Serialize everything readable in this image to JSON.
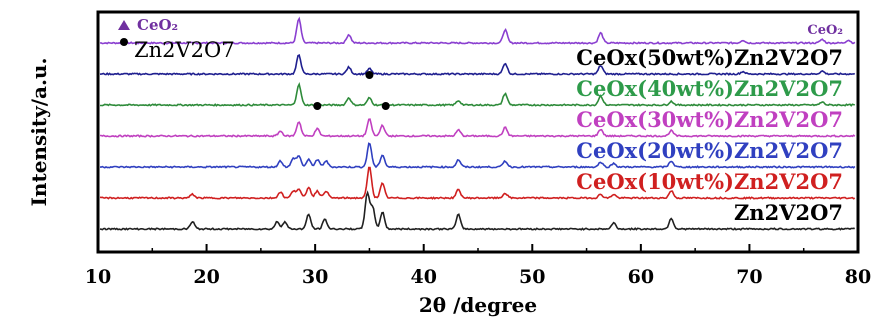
{
  "chart_data": {
    "type": "line",
    "xlabel": "2θ /degree",
    "ylabel": "Intensity/a.u.",
    "xlim": [
      10,
      80
    ],
    "xticks": [
      10,
      20,
      30,
      40,
      50,
      60,
      70,
      80
    ],
    "legend": [
      {
        "marker": "triangle",
        "label": "CeO₂",
        "color": "#7030a0"
      },
      {
        "marker": "dot",
        "label": "Zn2V2O7",
        "color": "#000000"
      }
    ],
    "series": [
      {
        "name": "CeO₂",
        "color": "#8a3fd0",
        "offset": 7,
        "label_color": "#7030a0",
        "peaks": [
          [
            28.5,
            1.0
          ],
          [
            33.1,
            0.35
          ],
          [
            47.5,
            0.55
          ],
          [
            56.3,
            0.42
          ],
          [
            69.4,
            0.12
          ],
          [
            76.7,
            0.15
          ],
          [
            79.1,
            0.12
          ]
        ]
      },
      {
        "name": "CeOx(50wt%)Zn2V2O7",
        "color": "#1f1f8f",
        "offset": 6,
        "label_color": "#000000",
        "peaks": [
          [
            28.5,
            0.8
          ],
          [
            33.1,
            0.28
          ],
          [
            35.0,
            0.22
          ],
          [
            47.5,
            0.45
          ],
          [
            56.3,
            0.35
          ],
          [
            69.4,
            0.1
          ],
          [
            76.7,
            0.12
          ]
        ]
      },
      {
        "name": "CeOx(40wt%)Zn2V2O7",
        "color": "#2e8b3a",
        "offset": 5,
        "label_color": "#2e9b4a",
        "peaks": [
          [
            28.5,
            0.85
          ],
          [
            33.1,
            0.3
          ],
          [
            35.0,
            0.3
          ],
          [
            43.2,
            0.18
          ],
          [
            47.5,
            0.48
          ],
          [
            56.3,
            0.38
          ],
          [
            62.8,
            0.15
          ],
          [
            76.7,
            0.12
          ]
        ]
      },
      {
        "name": "CeOx(30wt%)Zn2V2O7",
        "color": "#c040c0",
        "offset": 4,
        "label_color": "#c040c0",
        "peaks": [
          [
            26.8,
            0.2
          ],
          [
            28.5,
            0.6
          ],
          [
            30.2,
            0.3
          ],
          [
            35.0,
            0.7
          ],
          [
            36.2,
            0.45
          ],
          [
            43.2,
            0.25
          ],
          [
            47.5,
            0.35
          ],
          [
            56.3,
            0.28
          ],
          [
            62.8,
            0.22
          ]
        ]
      },
      {
        "name": "CeOx(20wt%)Zn2V2O7",
        "color": "#3040c0",
        "offset": 3,
        "label_color": "#3040c0",
        "peaks": [
          [
            26.8,
            0.25
          ],
          [
            28.0,
            0.35
          ],
          [
            28.5,
            0.45
          ],
          [
            29.4,
            0.3
          ],
          [
            30.2,
            0.3
          ],
          [
            31.0,
            0.25
          ],
          [
            35.0,
            1.0
          ],
          [
            36.2,
            0.5
          ],
          [
            43.2,
            0.3
          ],
          [
            47.5,
            0.25
          ],
          [
            56.3,
            0.2
          ],
          [
            57.5,
            0.15
          ],
          [
            62.8,
            0.25
          ]
        ]
      },
      {
        "name": "CeOx(10wt%)Zn2V2O7",
        "color": "#d02020",
        "offset": 2,
        "label_color": "#d02020",
        "peaks": [
          [
            18.7,
            0.15
          ],
          [
            26.8,
            0.25
          ],
          [
            28.0,
            0.3
          ],
          [
            28.5,
            0.35
          ],
          [
            29.4,
            0.45
          ],
          [
            30.2,
            0.3
          ],
          [
            31.0,
            0.3
          ],
          [
            35.0,
            1.3
          ],
          [
            36.2,
            0.6
          ],
          [
            43.2,
            0.35
          ],
          [
            47.5,
            0.2
          ],
          [
            56.3,
            0.15
          ],
          [
            57.5,
            0.15
          ],
          [
            62.8,
            0.3
          ]
        ]
      },
      {
        "name": "Zn2V2O7",
        "color": "#202020",
        "offset": 1,
        "label_color": "#000000",
        "peaks": [
          [
            18.7,
            0.3
          ],
          [
            26.5,
            0.3
          ],
          [
            27.2,
            0.3
          ],
          [
            29.4,
            0.6
          ],
          [
            30.9,
            0.4
          ],
          [
            34.8,
            1.5
          ],
          [
            35.3,
            0.9
          ],
          [
            36.2,
            0.7
          ],
          [
            43.2,
            0.6
          ],
          [
            57.5,
            0.25
          ],
          [
            62.8,
            0.45
          ]
        ]
      }
    ],
    "markers": [
      {
        "series_index": 3,
        "symbol": "dot",
        "x": 30.2
      },
      {
        "series_index": 2,
        "symbol": "dot",
        "x": 35.0
      },
      {
        "series_index": 3,
        "symbol": "dot",
        "x": 36.5
      }
    ]
  }
}
